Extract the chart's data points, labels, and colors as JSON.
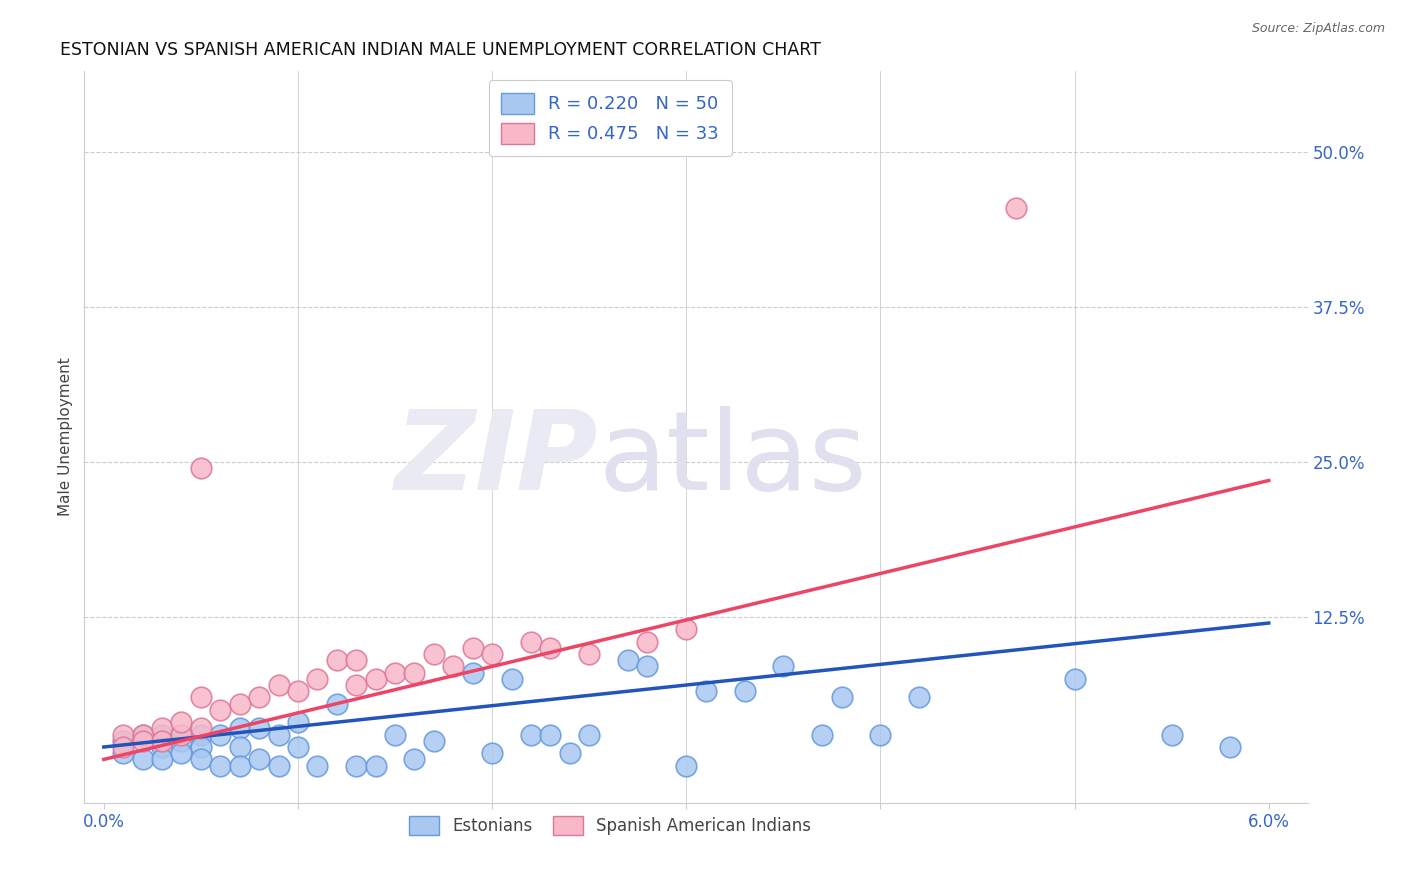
{
  "title": "ESTONIAN VS SPANISH AMERICAN INDIAN MALE UNEMPLOYMENT CORRELATION CHART",
  "source": "Source: ZipAtlas.com",
  "ylabel": "Male Unemployment",
  "ytick_labels": [
    "50.0%",
    "37.5%",
    "25.0%",
    "12.5%"
  ],
  "ytick_values": [
    0.5,
    0.375,
    0.25,
    0.125
  ],
  "xlim": [
    0.0,
    0.06
  ],
  "ylim": [
    -0.025,
    0.565
  ],
  "estonian_color": "#A8C8F0",
  "estonian_edge": "#6699DD",
  "spanish_color": "#F8B8C8",
  "spanish_edge": "#DD7799",
  "line_estonian": "#2255BB",
  "line_spanish": "#EE4466",
  "R_estonian": 0.22,
  "N_estonian": 50,
  "R_spanish": 0.475,
  "N_spanish": 33,
  "legend_label_estonian": "Estonians",
  "legend_label_spanish": "Spanish American Indians",
  "estonian_x": [
    0.001,
    0.001,
    0.002,
    0.002,
    0.003,
    0.003,
    0.003,
    0.004,
    0.004,
    0.005,
    0.005,
    0.005,
    0.006,
    0.006,
    0.007,
    0.007,
    0.007,
    0.008,
    0.008,
    0.009,
    0.009,
    0.01,
    0.01,
    0.011,
    0.012,
    0.013,
    0.014,
    0.015,
    0.016,
    0.017,
    0.019,
    0.02,
    0.021,
    0.022,
    0.023,
    0.024,
    0.025,
    0.027,
    0.028,
    0.03,
    0.031,
    0.033,
    0.035,
    0.037,
    0.038,
    0.04,
    0.042,
    0.05,
    0.055,
    0.058
  ],
  "estonian_y": [
    0.025,
    0.015,
    0.03,
    0.01,
    0.03,
    0.02,
    0.01,
    0.025,
    0.015,
    0.03,
    0.02,
    0.01,
    0.03,
    0.005,
    0.035,
    0.02,
    0.005,
    0.035,
    0.01,
    0.03,
    0.005,
    0.04,
    0.02,
    0.005,
    0.055,
    0.005,
    0.005,
    0.03,
    0.01,
    0.025,
    0.08,
    0.015,
    0.075,
    0.03,
    0.03,
    0.015,
    0.03,
    0.09,
    0.085,
    0.005,
    0.065,
    0.065,
    0.085,
    0.03,
    0.06,
    0.03,
    0.06,
    0.075,
    0.03,
    0.02
  ],
  "spanish_x": [
    0.001,
    0.001,
    0.002,
    0.002,
    0.003,
    0.003,
    0.004,
    0.004,
    0.005,
    0.005,
    0.006,
    0.007,
    0.008,
    0.009,
    0.01,
    0.011,
    0.012,
    0.013,
    0.013,
    0.014,
    0.015,
    0.016,
    0.017,
    0.018,
    0.019,
    0.02,
    0.022,
    0.023,
    0.025,
    0.028,
    0.03,
    0.047,
    0.005
  ],
  "spanish_y": [
    0.03,
    0.02,
    0.03,
    0.025,
    0.035,
    0.025,
    0.03,
    0.04,
    0.035,
    0.06,
    0.05,
    0.055,
    0.06,
    0.07,
    0.065,
    0.075,
    0.09,
    0.07,
    0.09,
    0.075,
    0.08,
    0.08,
    0.095,
    0.085,
    0.1,
    0.095,
    0.105,
    0.1,
    0.095,
    0.105,
    0.115,
    0.455,
    0.245
  ]
}
